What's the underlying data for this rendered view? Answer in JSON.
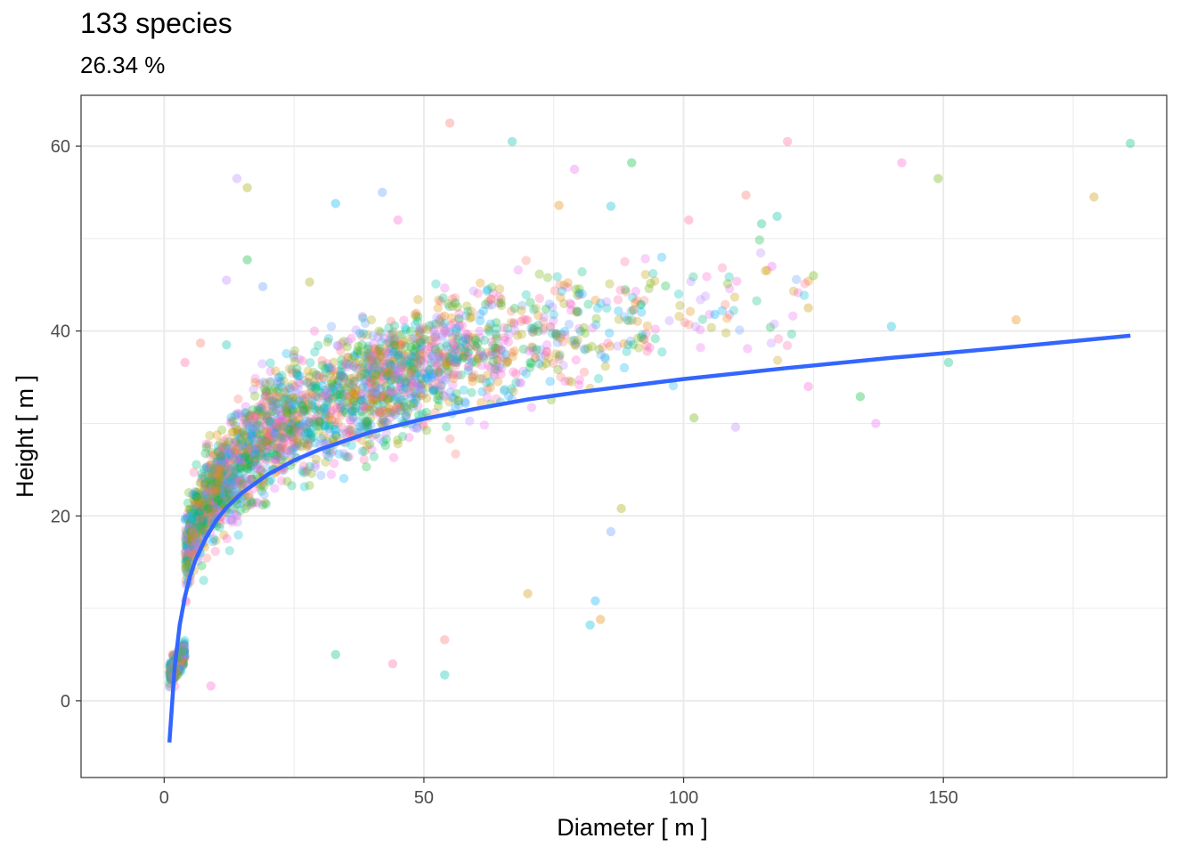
{
  "chart_data": {
    "type": "scatter",
    "title": "133 species",
    "subtitle": "26.34 %",
    "xlabel": "Diameter [ m ]",
    "ylabel": "Height [ m ]",
    "xlim": [
      -16,
      193
    ],
    "ylim": [
      -8.3,
      65.5
    ],
    "x_ticks": [
      0,
      50,
      100,
      150
    ],
    "y_ticks": [
      0,
      20,
      40,
      60
    ],
    "grid": true,
    "legend": "none",
    "point_palette": [
      "#F8766D",
      "#E58700",
      "#C99800",
      "#A3A500",
      "#6BB100",
      "#00BA38",
      "#00BF7D",
      "#00C0AF",
      "#00BCD8",
      "#00B0F6",
      "#619CFF",
      "#B983FF",
      "#E76BF3",
      "#FD61D1",
      "#FF67A4"
    ],
    "point_opacity": 0.3,
    "line_color": "#3366FF",
    "notable_points": [
      {
        "x": 55,
        "y": 62.5
      },
      {
        "x": 67,
        "y": 60.5
      },
      {
        "x": 120,
        "y": 60.5
      },
      {
        "x": 186,
        "y": 60.3
      },
      {
        "x": 142,
        "y": 58.2
      },
      {
        "x": 90,
        "y": 58.2
      },
      {
        "x": 79,
        "y": 57.5
      },
      {
        "x": 149,
        "y": 56.5
      },
      {
        "x": 14,
        "y": 56.5
      },
      {
        "x": 16,
        "y": 55.5
      },
      {
        "x": 42,
        "y": 55
      },
      {
        "x": 179,
        "y": 54.5
      },
      {
        "x": 33,
        "y": 53.8
      },
      {
        "x": 76,
        "y": 53.6
      },
      {
        "x": 86,
        "y": 53.5
      },
      {
        "x": 112,
        "y": 54.7
      },
      {
        "x": 118,
        "y": 52.4
      },
      {
        "x": 101,
        "y": 52
      },
      {
        "x": 115,
        "y": 51.6
      },
      {
        "x": 45,
        "y": 52
      },
      {
        "x": 16,
        "y": 47.7
      },
      {
        "x": 117,
        "y": 47
      },
      {
        "x": 125,
        "y": 46
      },
      {
        "x": 12,
        "y": 45.5
      },
      {
        "x": 28,
        "y": 45.3
      },
      {
        "x": 19,
        "y": 44.8
      },
      {
        "x": 124,
        "y": 42.5
      },
      {
        "x": 106,
        "y": 41.8
      },
      {
        "x": 164,
        "y": 41.2
      },
      {
        "x": 140,
        "y": 40.5
      },
      {
        "x": 7,
        "y": 38.7
      },
      {
        "x": 12,
        "y": 38.5
      },
      {
        "x": 4,
        "y": 36.6
      },
      {
        "x": 151,
        "y": 36.6
      },
      {
        "x": 124,
        "y": 34
      },
      {
        "x": 134,
        "y": 32.9
      },
      {
        "x": 137,
        "y": 30
      },
      {
        "x": 102,
        "y": 30.6
      },
      {
        "x": 110,
        "y": 29.6
      },
      {
        "x": 88,
        "y": 20.8
      },
      {
        "x": 86,
        "y": 18.3
      },
      {
        "x": 70,
        "y": 11.6
      },
      {
        "x": 83,
        "y": 10.8
      },
      {
        "x": 84,
        "y": 8.8
      },
      {
        "x": 82,
        "y": 8.2
      },
      {
        "x": 54,
        "y": 6.6
      },
      {
        "x": 54,
        "y": 2.8
      },
      {
        "x": 44,
        "y": 4
      },
      {
        "x": 33,
        "y": 5
      },
      {
        "x": 9,
        "y": 1.6
      }
    ],
    "trend_line": {
      "x": [
        1,
        2,
        3,
        4,
        5,
        6,
        8,
        10,
        12,
        15,
        20,
        25,
        30,
        40,
        50,
        60,
        70,
        80,
        100,
        120,
        140,
        160,
        186
      ],
      "y": [
        -4.5,
        3.5,
        8.2,
        11.3,
        13.5,
        15.2,
        17.6,
        19.5,
        20.9,
        22.5,
        24.5,
        26.0,
        27.2,
        29.1,
        30.5,
        31.6,
        32.6,
        33.4,
        34.8,
        36.0,
        37.1,
        38.1,
        39.5
      ]
    }
  }
}
